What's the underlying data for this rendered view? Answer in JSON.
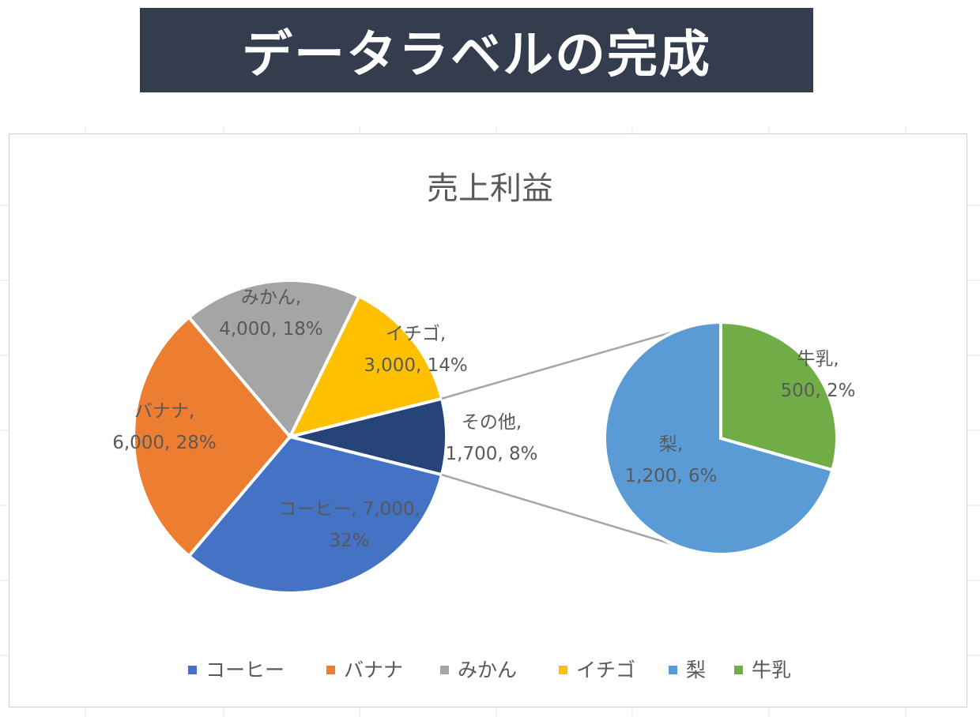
{
  "banner": {
    "title": "データラベルの完成"
  },
  "chart_data": {
    "type": "pie",
    "subtype": "pie-of-pie",
    "title": "売上利益",
    "main_pie": [
      {
        "label": "コーヒー",
        "value": 7000,
        "percent": "32%",
        "color": "#4472c4",
        "data_label": [
          "コーヒー, 7,000,",
          "32%"
        ]
      },
      {
        "label": "バナナ",
        "value": 6000,
        "percent": "28%",
        "color": "#ed7d31",
        "data_label": [
          "バナナ,",
          "6,000, 28%"
        ]
      },
      {
        "label": "みかん",
        "value": 4000,
        "percent": "18%",
        "color": "#a5a5a5",
        "data_label": [
          "みかん,",
          "4,000, 18%"
        ]
      },
      {
        "label": "イチゴ",
        "value": 3000,
        "percent": "14%",
        "color": "#ffc000",
        "data_label": [
          "イチゴ,",
          "3,000, 14%"
        ]
      },
      {
        "label": "その他",
        "value": 1700,
        "percent": "8%",
        "color": "#264478",
        "data_label": [
          "その他,",
          "1,700, 8%"
        ]
      }
    ],
    "secondary_pie": [
      {
        "label": "梨",
        "value": 1200,
        "percent": "6%",
        "color": "#5b9bd5",
        "data_label": [
          "梨,",
          "1,200, 6%"
        ]
      },
      {
        "label": "牛乳",
        "value": 500,
        "percent": "2%",
        "color": "#70ad47",
        "data_label": [
          "牛乳,",
          "500, 2%"
        ]
      }
    ],
    "legend": {
      "position": "bottom",
      "entries": [
        {
          "label": "コーヒー",
          "color": "#4472c4"
        },
        {
          "label": "バナナ",
          "color": "#ed7d31"
        },
        {
          "label": "みかん",
          "color": "#a5a5a5"
        },
        {
          "label": "イチゴ",
          "color": "#ffc000"
        },
        {
          "label": "梨",
          "color": "#5b9bd5"
        },
        {
          "label": "牛乳",
          "color": "#70ad47"
        }
      ]
    }
  }
}
